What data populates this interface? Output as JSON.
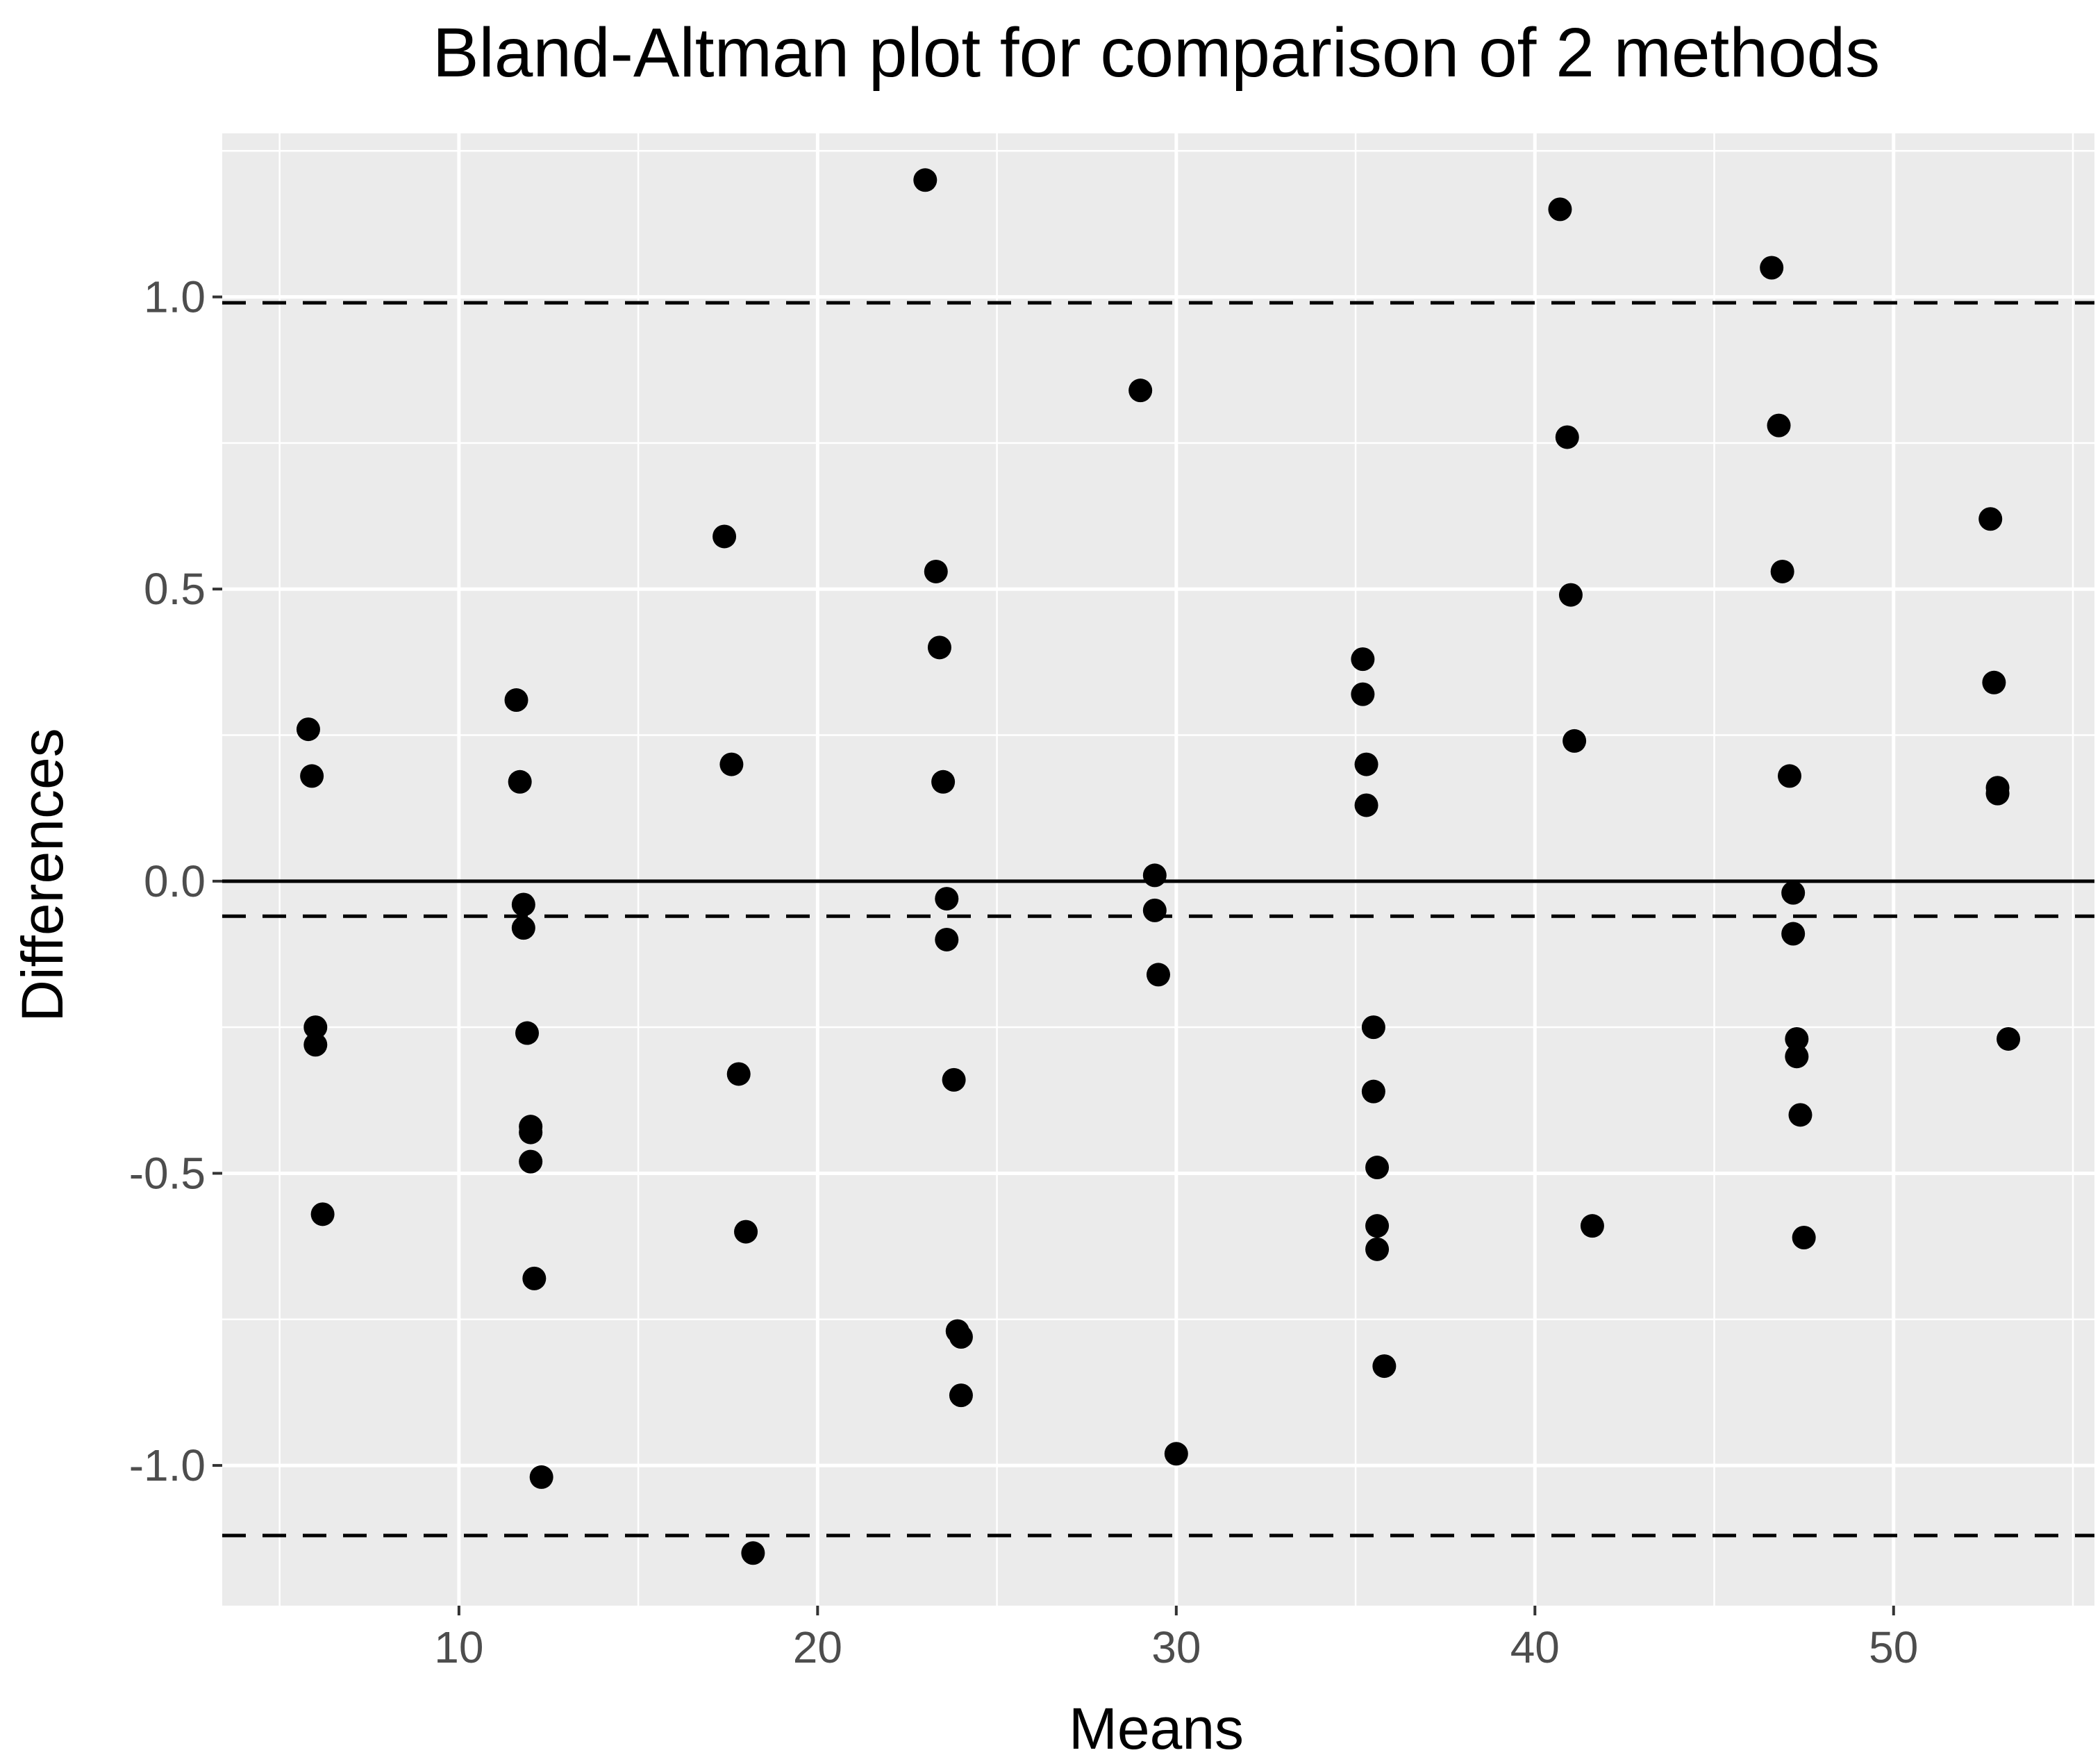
{
  "chart_data": {
    "type": "scatter",
    "title": "Bland-Altman plot for comparison of 2 methods",
    "xlabel": "Means",
    "ylabel": "Differences",
    "xlim": [
      3.4,
      55.6
    ],
    "ylim": [
      -1.24,
      1.28
    ],
    "x_ticks": [
      10,
      20,
      30,
      40,
      50
    ],
    "x_minor_ticks": [
      5,
      15,
      25,
      35,
      45,
      55
    ],
    "y_ticks": [
      -1.0,
      -0.5,
      0.0,
      0.5,
      1.0
    ],
    "y_tick_labels": [
      "-1.0",
      "-0.5",
      "0.0",
      "0.5",
      "1.0"
    ],
    "y_minor_ticks": [
      -0.75,
      -0.25,
      0.25,
      0.75,
      1.25
    ],
    "grid": true,
    "legend": "none",
    "colors": {
      "panel_background": "#ebebeb",
      "grid": "#ffffff",
      "points": "#000000",
      "reference_lines": "#000000"
    },
    "reference_lines": [
      {
        "y": 0.0,
        "style": "solid"
      },
      {
        "y": 0.99,
        "style": "dashed"
      },
      {
        "y": -0.06,
        "style": "dashed"
      },
      {
        "y": -1.12,
        "style": "dashed"
      }
    ],
    "points": [
      {
        "x": 5.8,
        "y": 0.26
      },
      {
        "x": 5.9,
        "y": 0.18
      },
      {
        "x": 6.0,
        "y": -0.25
      },
      {
        "x": 6.0,
        "y": -0.28
      },
      {
        "x": 6.2,
        "y": -0.57
      },
      {
        "x": 11.6,
        "y": 0.31
      },
      {
        "x": 11.7,
        "y": 0.17
      },
      {
        "x": 11.8,
        "y": -0.04
      },
      {
        "x": 11.8,
        "y": -0.08
      },
      {
        "x": 11.9,
        "y": -0.26
      },
      {
        "x": 12.0,
        "y": -0.42
      },
      {
        "x": 12.0,
        "y": -0.43
      },
      {
        "x": 12.0,
        "y": -0.48
      },
      {
        "x": 12.1,
        "y": -0.68
      },
      {
        "x": 12.3,
        "y": -1.02
      },
      {
        "x": 17.4,
        "y": 0.59
      },
      {
        "x": 17.6,
        "y": 0.2
      },
      {
        "x": 17.8,
        "y": -0.33
      },
      {
        "x": 18.0,
        "y": -0.6
      },
      {
        "x": 18.2,
        "y": -1.15
      },
      {
        "x": 23.0,
        "y": 1.2
      },
      {
        "x": 23.3,
        "y": 0.53
      },
      {
        "x": 23.4,
        "y": 0.4
      },
      {
        "x": 23.5,
        "y": 0.17
      },
      {
        "x": 23.6,
        "y": -0.03
      },
      {
        "x": 23.6,
        "y": -0.1
      },
      {
        "x": 23.8,
        "y": -0.34
      },
      {
        "x": 23.9,
        "y": -0.77
      },
      {
        "x": 24.0,
        "y": -0.78
      },
      {
        "x": 24.0,
        "y": -0.88
      },
      {
        "x": 29.0,
        "y": 0.84
      },
      {
        "x": 29.4,
        "y": 0.01
      },
      {
        "x": 29.4,
        "y": -0.05
      },
      {
        "x": 29.5,
        "y": -0.16
      },
      {
        "x": 30.0,
        "y": -0.98
      },
      {
        "x": 35.2,
        "y": 0.38
      },
      {
        "x": 35.2,
        "y": 0.32
      },
      {
        "x": 35.3,
        "y": 0.2
      },
      {
        "x": 35.3,
        "y": 0.13
      },
      {
        "x": 35.5,
        "y": -0.25
      },
      {
        "x": 35.5,
        "y": -0.36
      },
      {
        "x": 35.6,
        "y": -0.49
      },
      {
        "x": 35.6,
        "y": -0.59
      },
      {
        "x": 35.6,
        "y": -0.63
      },
      {
        "x": 35.8,
        "y": -0.83
      },
      {
        "x": 40.7,
        "y": 1.15
      },
      {
        "x": 40.9,
        "y": 0.76
      },
      {
        "x": 41.0,
        "y": 0.49
      },
      {
        "x": 41.1,
        "y": 0.24
      },
      {
        "x": 41.6,
        "y": -0.59
      },
      {
        "x": 46.6,
        "y": 1.05
      },
      {
        "x": 46.8,
        "y": 0.78
      },
      {
        "x": 46.9,
        "y": 0.53
      },
      {
        "x": 47.1,
        "y": 0.18
      },
      {
        "x": 47.2,
        "y": -0.02
      },
      {
        "x": 47.2,
        "y": -0.09
      },
      {
        "x": 47.3,
        "y": -0.27
      },
      {
        "x": 47.3,
        "y": -0.3
      },
      {
        "x": 47.4,
        "y": -0.4
      },
      {
        "x": 47.5,
        "y": -0.61
      },
      {
        "x": 52.7,
        "y": 0.62
      },
      {
        "x": 52.8,
        "y": 0.34
      },
      {
        "x": 52.9,
        "y": 0.15
      },
      {
        "x": 52.9,
        "y": 0.16
      },
      {
        "x": 53.2,
        "y": -0.27
      }
    ]
  }
}
